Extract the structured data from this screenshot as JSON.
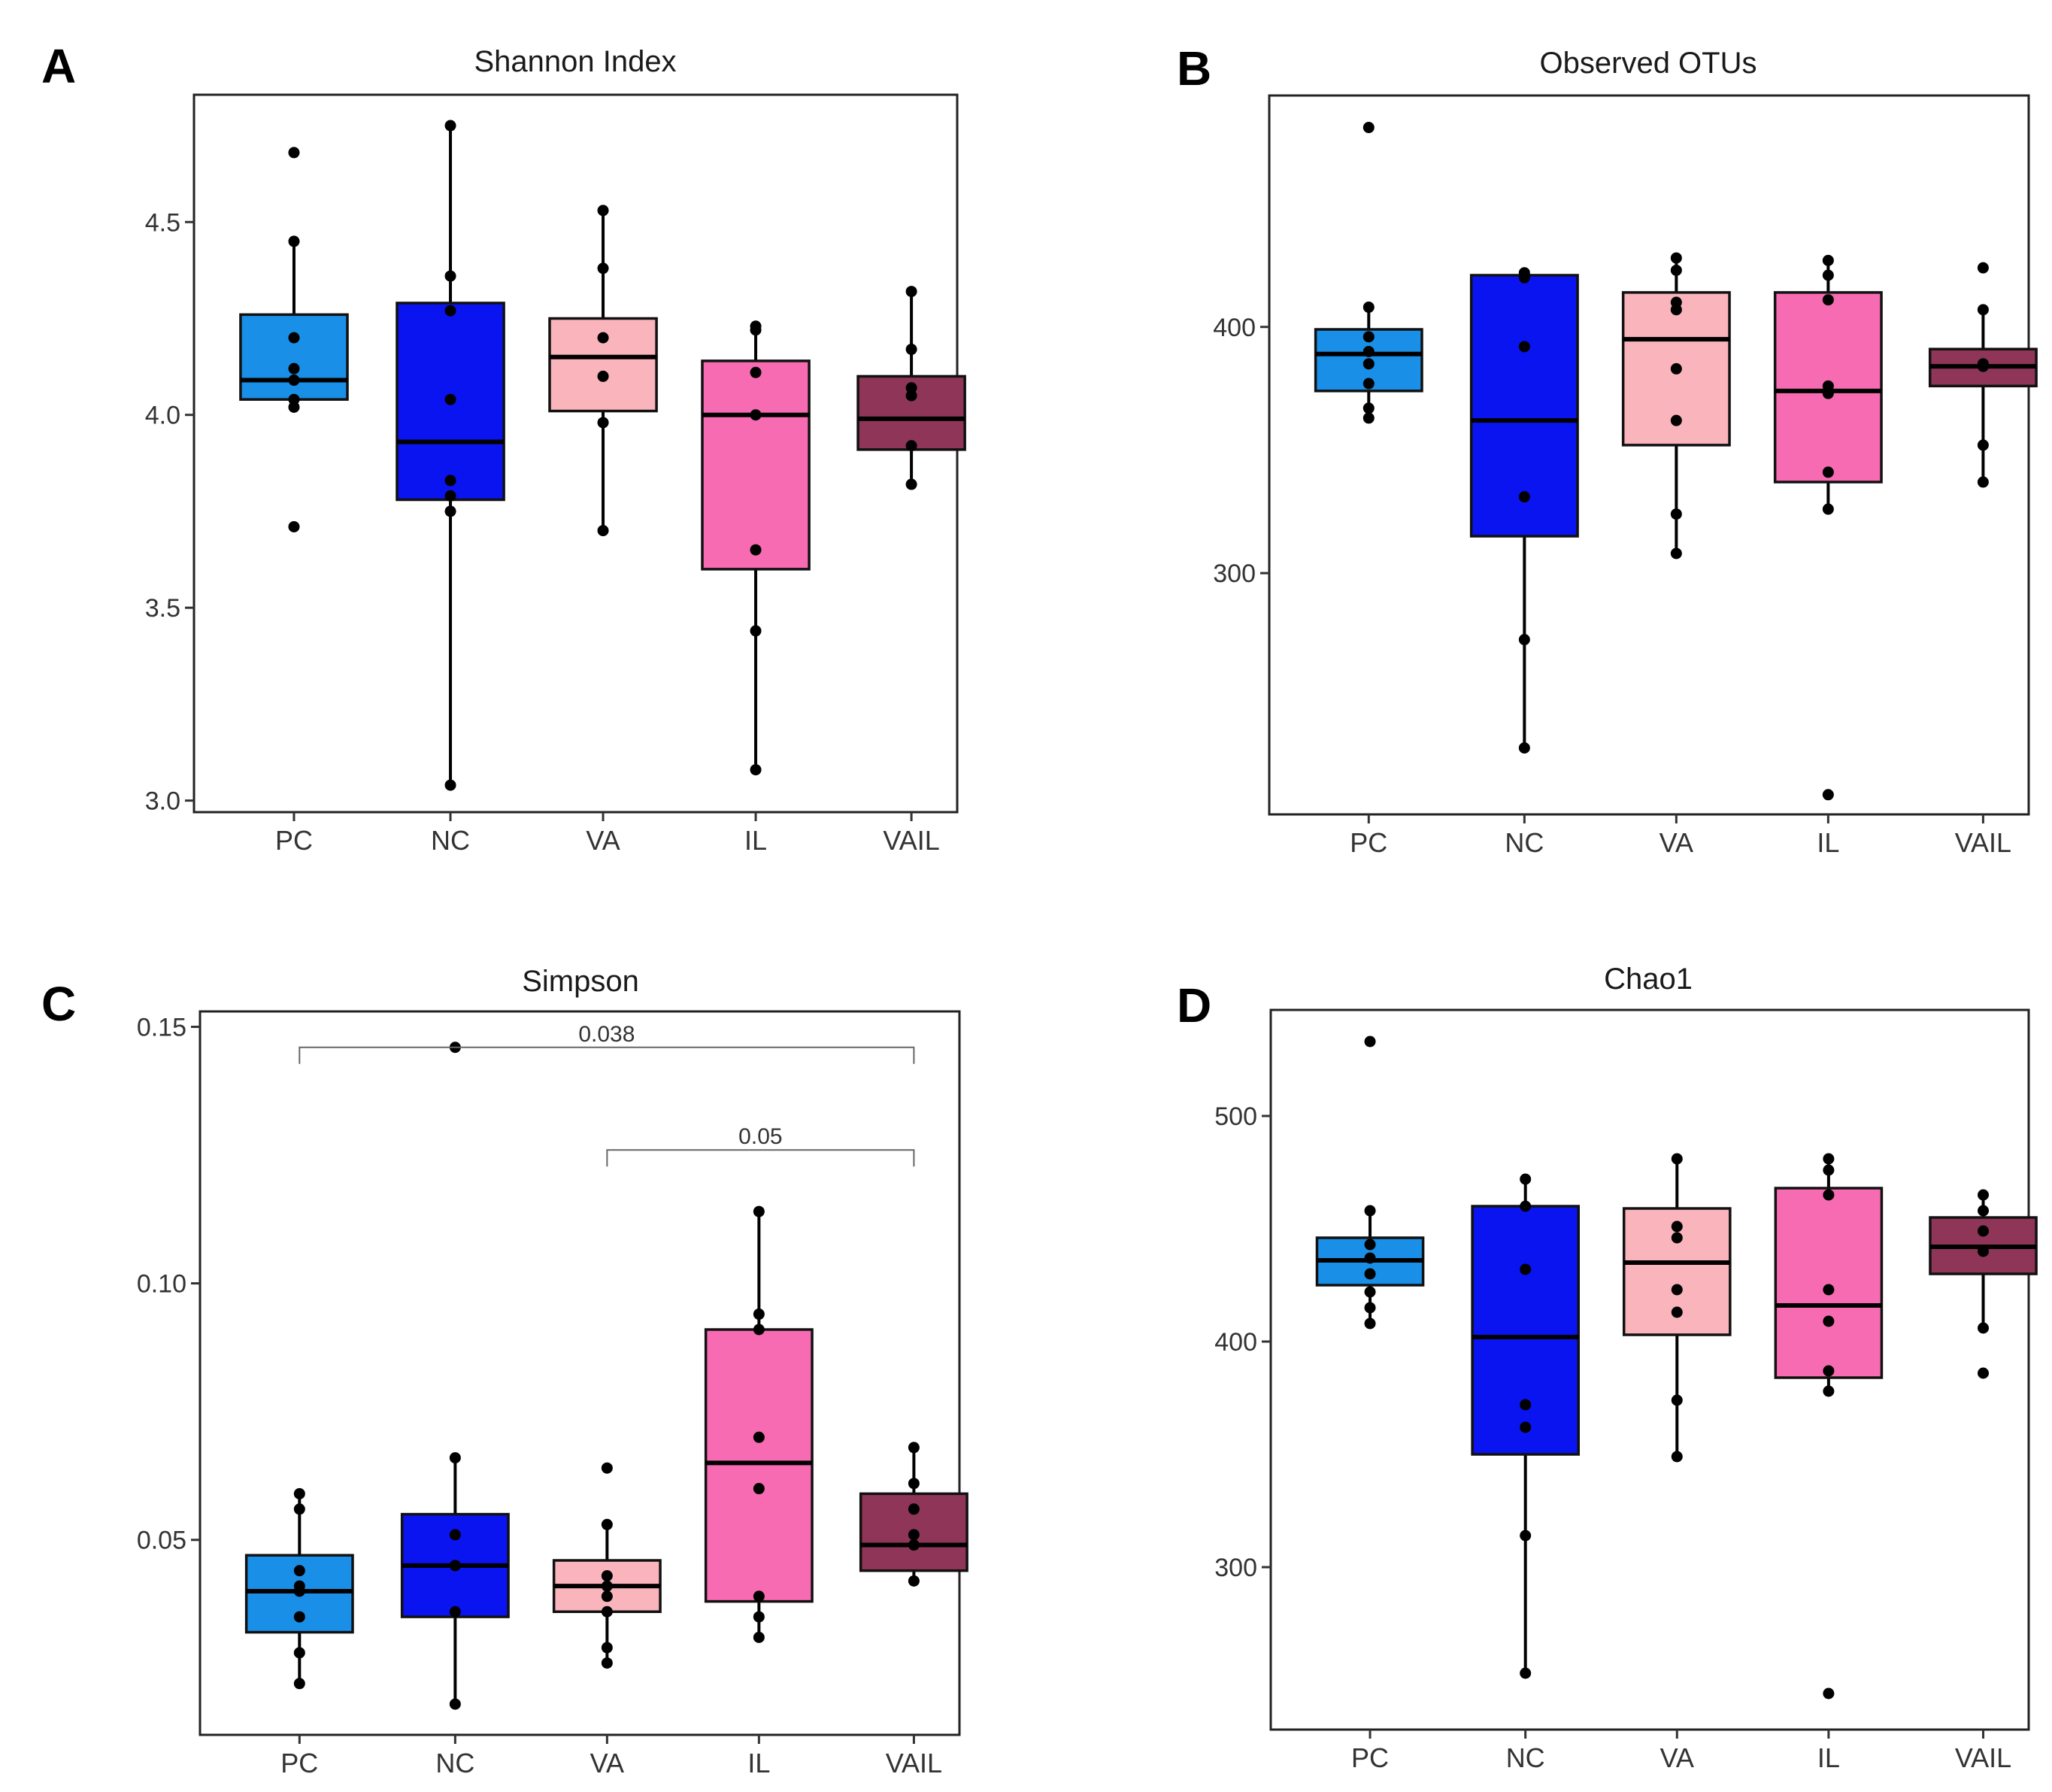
{
  "figure": {
    "group_colors": {
      "PC": "#1a8fe8",
      "NC": "#0a14f0",
      "VA": "#f9b4bc",
      "IL": "#f76bb2",
      "VAIL": "#8e3558"
    }
  },
  "chart_data": [
    {
      "panel": "A",
      "type": "box",
      "title": "Shannon Index",
      "xlabel": "",
      "ylabel": "",
      "categories": [
        "PC",
        "NC",
        "VA",
        "IL",
        "VAIL"
      ],
      "ylim": [
        2.97,
        4.83
      ],
      "yticks": [
        3.0,
        3.5,
        4.0,
        4.5
      ],
      "ytick_labels": [
        "3.0",
        "3.5",
        "4.0",
        "4.5"
      ],
      "boxes": [
        {
          "group": "PC",
          "q1": 4.04,
          "median": 4.09,
          "q3": 4.26,
          "whisker_low": 4.02,
          "whisker_high": 4.45,
          "points": [
            4.68,
            4.45,
            4.2,
            4.12,
            4.09,
            4.04,
            4.02,
            3.71
          ]
        },
        {
          "group": "NC",
          "q1": 3.78,
          "median": 3.93,
          "q3": 4.29,
          "whisker_low": 3.04,
          "whisker_high": 4.75,
          "points": [
            4.75,
            4.36,
            4.27,
            4.04,
            3.83,
            3.79,
            3.75,
            3.04
          ]
        },
        {
          "group": "VA",
          "q1": 4.01,
          "median": 4.15,
          "q3": 4.25,
          "whisker_low": 3.7,
          "whisker_high": 4.53,
          "points": [
            4.53,
            4.38,
            4.2,
            4.1,
            3.98,
            3.7
          ]
        },
        {
          "group": "IL",
          "q1": 3.6,
          "median": 4.0,
          "q3": 4.14,
          "whisker_low": 3.08,
          "whisker_high": 4.23,
          "points": [
            4.23,
            4.22,
            4.11,
            4.0,
            3.65,
            3.44,
            3.08
          ]
        },
        {
          "group": "VAIL",
          "q1": 3.91,
          "median": 3.99,
          "q3": 4.1,
          "whisker_low": 3.82,
          "whisker_high": 4.32,
          "points": [
            4.32,
            4.17,
            4.07,
            4.05,
            3.92,
            3.82
          ]
        }
      ],
      "comparisons": []
    },
    {
      "panel": "B",
      "type": "box",
      "title": "Observed OTUs",
      "xlabel": "",
      "ylabel": "",
      "categories": [
        "PC",
        "NC",
        "VA",
        "IL",
        "VAIL"
      ],
      "ylim": [
        202,
        494
      ],
      "yticks": [
        300,
        400
      ],
      "ytick_labels": [
        "300",
        "400"
      ],
      "boxes": [
        {
          "group": "PC",
          "q1": 374,
          "median": 389,
          "q3": 399,
          "whisker_low": 363,
          "whisker_high": 408,
          "points": [
            481,
            408,
            396,
            390,
            385,
            377,
            367,
            363
          ]
        },
        {
          "group": "NC",
          "q1": 315,
          "median": 362,
          "q3": 421,
          "whisker_low": 229,
          "whisker_high": 422,
          "points": [
            422,
            420,
            392,
            331,
            273,
            229
          ]
        },
        {
          "group": "VA",
          "q1": 352,
          "median": 395,
          "q3": 414,
          "whisker_low": 308,
          "whisker_high": 428,
          "points": [
            428,
            423,
            410,
            407,
            383,
            362,
            324,
            308
          ]
        },
        {
          "group": "IL",
          "q1": 337,
          "median": 374,
          "q3": 414,
          "whisker_low": 326,
          "whisker_high": 427,
          "points": [
            427,
            421,
            411,
            376,
            373,
            341,
            326,
            210
          ]
        },
        {
          "group": "VAIL",
          "q1": 376,
          "median": 384,
          "q3": 391,
          "whisker_low": 337,
          "whisker_high": 407,
          "points": [
            424,
            407,
            385,
            384,
            352,
            337
          ]
        }
      ],
      "comparisons": []
    },
    {
      "panel": "C",
      "type": "box",
      "title": "Simpson",
      "xlabel": "",
      "ylabel": "",
      "categories": [
        "PC",
        "NC",
        "VA",
        "IL",
        "VAIL"
      ],
      "ylim": [
        0.012,
        0.153
      ],
      "yticks": [
        0.05,
        0.1,
        0.15
      ],
      "ytick_labels": [
        "0.05",
        "0.10",
        "0.15"
      ],
      "boxes": [
        {
          "group": "PC",
          "q1": 0.032,
          "median": 0.04,
          "q3": 0.047,
          "whisker_low": 0.022,
          "whisker_high": 0.059,
          "points": [
            0.059,
            0.056,
            0.044,
            0.041,
            0.04,
            0.035,
            0.028,
            0.022
          ]
        },
        {
          "group": "NC",
          "q1": 0.035,
          "median": 0.045,
          "q3": 0.055,
          "whisker_low": 0.018,
          "whisker_high": 0.066,
          "points": [
            0.146,
            0.066,
            0.051,
            0.045,
            0.045,
            0.036,
            0.018
          ]
        },
        {
          "group": "VA",
          "q1": 0.036,
          "median": 0.041,
          "q3": 0.046,
          "whisker_low": 0.026,
          "whisker_high": 0.053,
          "points": [
            0.064,
            0.053,
            0.043,
            0.041,
            0.039,
            0.036,
            0.029,
            0.026
          ]
        },
        {
          "group": "IL",
          "q1": 0.038,
          "median": 0.065,
          "q3": 0.091,
          "whisker_low": 0.031,
          "whisker_high": 0.114,
          "points": [
            0.114,
            0.094,
            0.091,
            0.07,
            0.06,
            0.039,
            0.035,
            0.031
          ]
        },
        {
          "group": "VAIL",
          "q1": 0.044,
          "median": 0.049,
          "q3": 0.059,
          "whisker_low": 0.042,
          "whisker_high": 0.068,
          "points": [
            0.068,
            0.061,
            0.056,
            0.051,
            0.049,
            0.042
          ]
        }
      ],
      "comparisons": [
        {
          "from": "PC",
          "to": "VAIL",
          "label": "0.038",
          "y": 0.146
        },
        {
          "from": "VA",
          "to": "VAIL",
          "label": "0.05",
          "y": 0.126
        }
      ]
    },
    {
      "panel": "D",
      "type": "box",
      "title": "Chao1",
      "xlabel": "",
      "ylabel": "",
      "categories": [
        "PC",
        "NC",
        "VA",
        "IL",
        "VAIL"
      ],
      "ylim": [
        228,
        547
      ],
      "yticks": [
        300,
        400,
        500
      ],
      "ytick_labels": [
        "300",
        "400",
        "500"
      ],
      "boxes": [
        {
          "group": "PC",
          "q1": 425,
          "median": 436,
          "q3": 446,
          "whisker_low": 408,
          "whisker_high": 458,
          "points": [
            533,
            458,
            443,
            437,
            430,
            422,
            415,
            408
          ]
        },
        {
          "group": "NC",
          "q1": 350,
          "median": 402,
          "q3": 460,
          "whisker_low": 253,
          "whisker_high": 472,
          "points": [
            472,
            460,
            432,
            372,
            362,
            314,
            253
          ]
        },
        {
          "group": "VA",
          "q1": 403,
          "median": 435,
          "q3": 459,
          "whisker_low": 349,
          "whisker_high": 481,
          "points": [
            481,
            451,
            446,
            423,
            413,
            374,
            349
          ]
        },
        {
          "group": "IL",
          "q1": 384,
          "median": 416,
          "q3": 468,
          "whisker_low": 378,
          "whisker_high": 481,
          "points": [
            481,
            476,
            465,
            423,
            409,
            387,
            378,
            244
          ]
        },
        {
          "group": "VAIL",
          "q1": 430,
          "median": 442,
          "q3": 455,
          "whisker_low": 406,
          "whisker_high": 465,
          "points": [
            465,
            458,
            449,
            440,
            406,
            386
          ]
        }
      ],
      "comparisons": []
    }
  ]
}
